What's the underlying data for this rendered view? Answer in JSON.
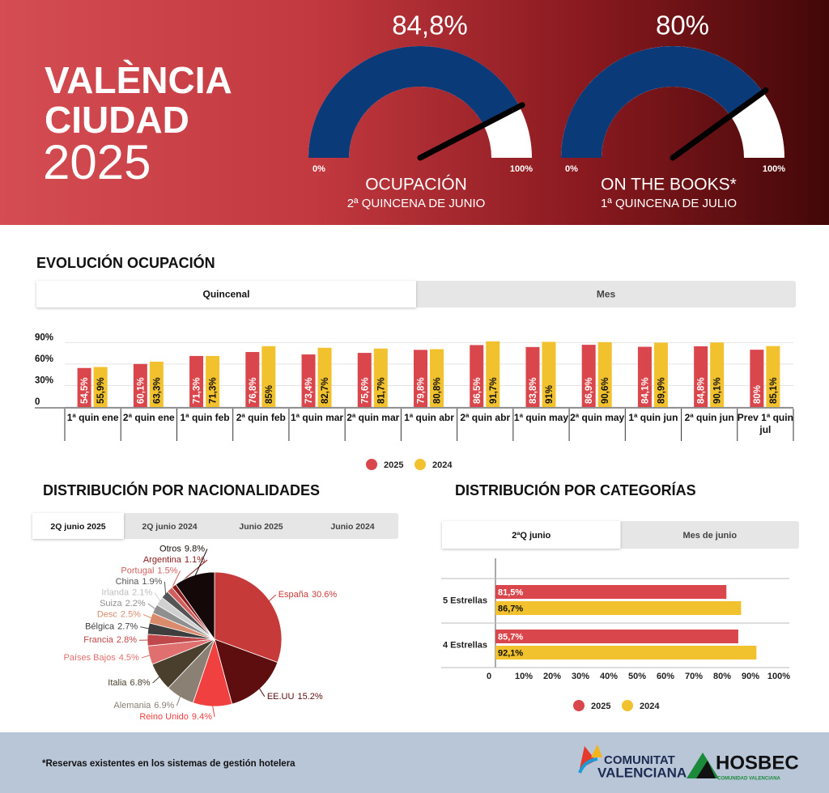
{
  "header": {
    "title": [
      "VALÈNCIA",
      "CIUDAD",
      "2025"
    ]
  },
  "chart_data": [
    {
      "type": "gauge",
      "values": [
        84.8
      ],
      "value_labels": [
        "84,8%"
      ],
      "ylim": [
        0,
        100
      ],
      "yticks": [
        {
          "value": 0,
          "label": "0%"
        },
        {
          "value": 100,
          "label": "100%"
        }
      ],
      "title": "OCUPACIÓN",
      "subtitle": "2ª QUINCENA DE JUNIO",
      "color": "#0b3a78"
    },
    {
      "type": "gauge",
      "values": [
        80
      ],
      "value_labels": [
        "80%"
      ],
      "ylim": [
        0,
        100
      ],
      "yticks": [
        {
          "value": 0,
          "label": "0%"
        },
        {
          "value": 100,
          "label": "100%"
        }
      ],
      "title": "ON THE BOOKS*",
      "subtitle": "1ª QUINCENA DE JULIO",
      "color": "#0b3a78"
    },
    {
      "type": "bar",
      "title": "EVOLUCIÓN OCUPACIÓN",
      "tabs": [
        "Quincenal",
        "Mes"
      ],
      "categories": [
        "1ª quin ene",
        "2ª quin ene",
        "1ª quin feb",
        "2ª quin feb",
        "1ª quin mar",
        "2ª quin mar",
        "1ª quin abr",
        "2ª quin abr",
        "1ª quin may",
        "2ª quin may",
        "1ª quin jun",
        "2ª quin jun",
        "Prev 1ª quin jul"
      ],
      "series": [
        {
          "name": "2025",
          "color": "#d9474d",
          "values": [
            54.5,
            60.1,
            71.3,
            76.8,
            73.4,
            75.6,
            79.8,
            86.5,
            83.8,
            86.9,
            84.1,
            84.8,
            80
          ],
          "value_labels": [
            "54,5%",
            "60,1%",
            "71,3%",
            "76,8%",
            "73,4%",
            "75,6%",
            "79,8%",
            "86,5%",
            "83,8%",
            "86,9%",
            "84,1%",
            "84,8%",
            "80%"
          ]
        },
        {
          "name": "2024",
          "color": "#f2c12e",
          "values": [
            55.9,
            63.3,
            71.3,
            85,
            82.7,
            81.7,
            80.8,
            91.7,
            91,
            90.6,
            89.9,
            90.1,
            85.1
          ],
          "value_labels": [
            "55,9%",
            "63,3%",
            "71,3%",
            "85%",
            "82,7%",
            "81,7%",
            "80,8%",
            "91,7%",
            "91%",
            "90,6%",
            "89,9%",
            "90,1%",
            "85,1%"
          ]
        }
      ],
      "ylim": [
        0,
        100
      ],
      "yticks": [
        0,
        {
          "value": 30,
          "label": "30%"
        },
        {
          "value": 60,
          "label": "60%"
        },
        {
          "value": 90,
          "label": "90%"
        }
      ],
      "grid": true,
      "legend": "bottom"
    },
    {
      "type": "pie",
      "title": "DISTRIBUCIÓN POR NACIONALIDADES",
      "tabs": [
        "2Q junio 2025",
        "2Q junio 2024",
        "Junio 2025",
        "Junio 2024"
      ],
      "categories": [
        "España",
        "EE.UU",
        "Reino Unido",
        "Alemania",
        "Italia",
        "Países Bajos",
        "Francia",
        "Bélgica",
        "Desc",
        "Suiza",
        "Irlanda",
        "China",
        "Portugal",
        "Argentina",
        "Otros"
      ],
      "values": [
        30.6,
        15.2,
        9.4,
        6.9,
        6.8,
        4.5,
        2.8,
        2.7,
        2.5,
        2.2,
        2.1,
        1.9,
        1.5,
        1.1,
        9.8
      ],
      "value_labels": [
        "30.6%",
        "15.2%",
        "9.4%",
        "6.9%",
        "6.8%",
        "4.5%",
        "2.8%",
        "2.7%",
        "2.5%",
        "2.2%",
        "2.1%",
        "1.9%",
        "1.5%",
        "1.1%",
        "9.8%"
      ],
      "colors": [
        "#c63a3a",
        "#5e0e0e",
        "#f04040",
        "#8a8074",
        "#4a3f2d",
        "#e07070",
        "#c0474a",
        "#3e3e3e",
        "#d98b6c",
        "#8f8f8f",
        "#d0d0d0",
        "#555555",
        "#d06060",
        "#8b1a1a",
        "#150808"
      ]
    },
    {
      "type": "barh",
      "title": "DISTRIBUCIÓN POR CATEGORÍAS",
      "tabs": [
        "2ªQ junio",
        "Mes de junio"
      ],
      "categories": [
        "5 Estrellas",
        "4 Estrellas"
      ],
      "series": [
        {
          "name": "2025",
          "color": "#d9474d",
          "values": [
            81.5,
            85.7
          ],
          "value_labels": [
            "81,5%",
            "85,7%"
          ]
        },
        {
          "name": "2024",
          "color": "#f2c12e",
          "values": [
            86.7,
            92.1
          ],
          "value_labels": [
            "86,7%",
            "92,1%"
          ]
        }
      ],
      "xlim": [
        0,
        100
      ],
      "xticks": [
        0,
        {
          "value": 10,
          "label": "10%"
        },
        {
          "value": 20,
          "label": "20%"
        },
        {
          "value": 30,
          "label": "30%"
        },
        {
          "value": 40,
          "label": "40%"
        },
        {
          "value": 50,
          "label": "50%"
        },
        {
          "value": 60,
          "label": "60%"
        },
        {
          "value": 70,
          "label": "70%"
        },
        {
          "value": 80,
          "label": "80%"
        },
        {
          "value": 90,
          "label": "90%"
        },
        {
          "value": 100,
          "label": "100%"
        }
      ],
      "legend": "bottom"
    }
  ],
  "footer": {
    "note": "*Reservas existentes en los sistemas de gestión hotelera",
    "logo1": [
      "COMUNITAT",
      "VALENCIANA"
    ],
    "logo2": "HOSBEC",
    "logo2_sub": "COMUNIDAD VALENCIANA"
  }
}
